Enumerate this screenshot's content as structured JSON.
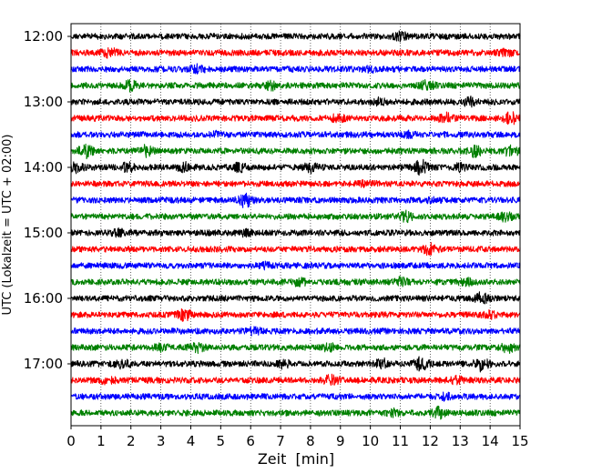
{
  "chart_data": {
    "type": "line",
    "title": "",
    "xlabel": "Zeit  [min]",
    "ylabel": "UTC (Lokalzeit = UTC + 02:00)",
    "xlim": [
      0,
      15
    ],
    "x_ticks": [
      "0",
      "1",
      "2",
      "3",
      "4",
      "5",
      "6",
      "7",
      "8",
      "9",
      "10",
      "11",
      "12",
      "13",
      "14",
      "15"
    ],
    "y_tick_labels": [
      "12:00",
      "13:00",
      "14:00",
      "15:00",
      "16:00",
      "17:00"
    ],
    "grid": "vertical dotted lines at each minute",
    "color_cycle": [
      "#000000",
      "#ff0000",
      "#0000ff",
      "#008000"
    ],
    "traces": [
      {
        "start": "12:00",
        "color": "#000000",
        "events": [
          {
            "t": 11.0,
            "a": 0.5
          }
        ]
      },
      {
        "start": "12:15",
        "color": "#ff0000",
        "events": [
          {
            "t": 1.3,
            "a": 0.6
          },
          {
            "t": 14.5,
            "a": 0.4
          }
        ]
      },
      {
        "start": "12:30",
        "color": "#0000ff",
        "events": [
          {
            "t": 4.2,
            "a": 0.5
          },
          {
            "t": 10.0,
            "a": 0.3
          }
        ]
      },
      {
        "start": "12:45",
        "color": "#008000",
        "events": [
          {
            "t": 2.0,
            "a": 0.6
          },
          {
            "t": 6.7,
            "a": 0.5
          },
          {
            "t": 11.9,
            "a": 0.6
          }
        ]
      },
      {
        "start": "13:00",
        "color": "#000000",
        "events": [
          {
            "t": 10.3,
            "a": 0.4
          },
          {
            "t": 13.3,
            "a": 0.5
          }
        ]
      },
      {
        "start": "13:15",
        "color": "#ff0000",
        "events": [
          {
            "t": 8.9,
            "a": 0.5
          },
          {
            "t": 12.5,
            "a": 0.6
          },
          {
            "t": 14.7,
            "a": 0.9
          }
        ]
      },
      {
        "start": "13:30",
        "color": "#0000ff",
        "events": [
          {
            "t": 4.9,
            "a": 0.3
          },
          {
            "t": 11.3,
            "a": 0.3
          }
        ]
      },
      {
        "start": "13:45",
        "color": "#008000",
        "events": [
          {
            "t": 0.5,
            "a": 0.9
          },
          {
            "t": 2.5,
            "a": 0.7
          },
          {
            "t": 13.5,
            "a": 0.7
          },
          {
            "t": 14.7,
            "a": 0.7
          }
        ]
      },
      {
        "start": "14:00",
        "color": "#000000",
        "events": [
          {
            "t": 0.2,
            "a": 0.6
          },
          {
            "t": 1.9,
            "a": 0.6
          },
          {
            "t": 3.8,
            "a": 0.5
          },
          {
            "t": 5.6,
            "a": 0.5
          },
          {
            "t": 8.0,
            "a": 0.6
          },
          {
            "t": 11.7,
            "a": 1.0
          },
          {
            "t": 13.0,
            "a": 0.5
          }
        ]
      },
      {
        "start": "14:15",
        "color": "#ff0000",
        "events": [
          {
            "t": 9.9,
            "a": 0.3
          }
        ]
      },
      {
        "start": "14:30",
        "color": "#0000ff",
        "events": [
          {
            "t": 5.8,
            "a": 1.0
          },
          {
            "t": 12.0,
            "a": 0.3
          }
        ]
      },
      {
        "start": "14:45",
        "color": "#008000",
        "events": [
          {
            "t": 11.2,
            "a": 0.6
          },
          {
            "t": 14.5,
            "a": 0.5
          }
        ]
      },
      {
        "start": "15:00",
        "color": "#000000",
        "events": [
          {
            "t": 1.6,
            "a": 0.4
          },
          {
            "t": 5.8,
            "a": 0.3
          }
        ]
      },
      {
        "start": "15:15",
        "color": "#ff0000",
        "events": [
          {
            "t": 12.0,
            "a": 0.8
          }
        ]
      },
      {
        "start": "15:30",
        "color": "#0000ff",
        "events": [
          {
            "t": 6.5,
            "a": 0.3
          }
        ]
      },
      {
        "start": "15:45",
        "color": "#008000",
        "events": [
          {
            "t": 7.6,
            "a": 0.5
          },
          {
            "t": 11.0,
            "a": 0.5
          },
          {
            "t": 13.2,
            "a": 0.4
          }
        ]
      },
      {
        "start": "16:00",
        "color": "#000000",
        "events": [
          {
            "t": 13.7,
            "a": 0.7
          }
        ]
      },
      {
        "start": "16:15",
        "color": "#ff0000",
        "events": [
          {
            "t": 3.8,
            "a": 0.7
          },
          {
            "t": 14.0,
            "a": 0.4
          }
        ]
      },
      {
        "start": "16:30",
        "color": "#0000ff",
        "events": [
          {
            "t": 6.1,
            "a": 0.4
          }
        ]
      },
      {
        "start": "16:45",
        "color": "#008000",
        "events": [
          {
            "t": 3.0,
            "a": 0.4
          },
          {
            "t": 4.2,
            "a": 0.6
          },
          {
            "t": 8.6,
            "a": 0.5
          },
          {
            "t": 14.6,
            "a": 0.6
          }
        ]
      },
      {
        "start": "17:00",
        "color": "#000000",
        "events": [
          {
            "t": 1.7,
            "a": 0.6
          },
          {
            "t": 7.1,
            "a": 0.5
          },
          {
            "t": 10.4,
            "a": 0.6
          },
          {
            "t": 11.7,
            "a": 0.9
          },
          {
            "t": 13.7,
            "a": 0.9
          }
        ]
      },
      {
        "start": "17:15",
        "color": "#ff0000",
        "events": [
          {
            "t": 1.2,
            "a": 0.5
          },
          {
            "t": 8.7,
            "a": 0.7
          },
          {
            "t": 12.9,
            "a": 0.4
          }
        ]
      },
      {
        "start": "17:30",
        "color": "#0000ff",
        "events": [
          {
            "t": 12.5,
            "a": 0.4
          }
        ]
      },
      {
        "start": "17:45",
        "color": "#008000",
        "events": [
          {
            "t": 10.8,
            "a": 0.4
          },
          {
            "t": 12.3,
            "a": 0.7
          }
        ]
      }
    ]
  }
}
